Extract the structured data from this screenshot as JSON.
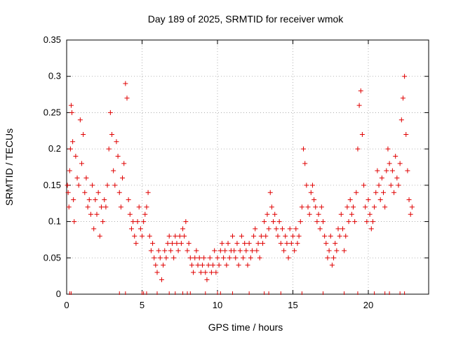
{
  "chart_data": {
    "type": "scatter",
    "title": "Day 189 of 2025, SRMTID for receiver wmok",
    "xlabel": "GPS time / hours",
    "ylabel": "SRMTID / TECUs",
    "xlim": [
      0,
      24
    ],
    "ylim": [
      0,
      0.35
    ],
    "grid": true,
    "marker": "+",
    "color": "#e00000",
    "xticks": [
      0,
      5,
      10,
      15,
      20
    ],
    "xtick_labels": [
      "0",
      "5",
      "10",
      "15",
      "20"
    ],
    "yticks": [
      0,
      0.05,
      0.1,
      0.15,
      0.2,
      0.25,
      0.3,
      0.35
    ],
    "ytick_labels": [
      "0",
      "0.05",
      "0.1",
      "0.15",
      "0.2",
      "0.25",
      "0.3",
      "0.35"
    ],
    "series": [
      {
        "name": "SRMTID",
        "points": [
          [
            0.05,
            0.15
          ],
          [
            0.1,
            0.14
          ],
          [
            0.15,
            0.12
          ],
          [
            0.2,
            0.17
          ],
          [
            0.25,
            0.2
          ],
          [
            0.3,
            0.26
          ],
          [
            0.35,
            0.25
          ],
          [
            0.4,
            0.21
          ],
          [
            0.45,
            0.13
          ],
          [
            0.5,
            0.1
          ],
          [
            0.6,
            0.19
          ],
          [
            0.7,
            0.16
          ],
          [
            0.8,
            0.15
          ],
          [
            0.9,
            0.24
          ],
          [
            1.0,
            0.18
          ],
          [
            1.1,
            0.22
          ],
          [
            1.2,
            0.14
          ],
          [
            1.3,
            0.16
          ],
          [
            1.4,
            0.12
          ],
          [
            1.5,
            0.13
          ],
          [
            1.6,
            0.11
          ],
          [
            1.7,
            0.15
          ],
          [
            1.8,
            0.09
          ],
          [
            1.9,
            0.13
          ],
          [
            2.0,
            0.11
          ],
          [
            2.1,
            0.14
          ],
          [
            2.2,
            0.08
          ],
          [
            2.3,
            0.12
          ],
          [
            2.4,
            0.1
          ],
          [
            2.5,
            0.13
          ],
          [
            2.6,
            0.12
          ],
          [
            2.7,
            0.15
          ],
          [
            2.8,
            0.2
          ],
          [
            2.9,
            0.25
          ],
          [
            3.0,
            0.22
          ],
          [
            3.1,
            0.17
          ],
          [
            3.2,
            0.15
          ],
          [
            3.3,
            0.21
          ],
          [
            3.4,
            0.19
          ],
          [
            3.5,
            0.14
          ],
          [
            3.6,
            0.12
          ],
          [
            3.7,
            0.16
          ],
          [
            3.8,
            0.18
          ],
          [
            3.9,
            0.29
          ],
          [
            4.0,
            0.27
          ],
          [
            4.1,
            0.13
          ],
          [
            4.2,
            0.11
          ],
          [
            4.3,
            0.09
          ],
          [
            4.4,
            0.1
          ],
          [
            4.5,
            0.08
          ],
          [
            4.6,
            0.07
          ],
          [
            4.7,
            0.1
          ],
          [
            4.8,
            0.12
          ],
          [
            4.9,
            0.09
          ],
          [
            5.0,
            0.08
          ],
          [
            5.1,
            0.1
          ],
          [
            5.2,
            0.11
          ],
          [
            5.3,
            0.12
          ],
          [
            5.4,
            0.14
          ],
          [
            5.5,
            0.08
          ],
          [
            5.6,
            0.06
          ],
          [
            5.7,
            0.07
          ],
          [
            5.8,
            0.05
          ],
          [
            5.9,
            0.04
          ],
          [
            6.0,
            0.03
          ],
          [
            6.1,
            0.06
          ],
          [
            6.2,
            0.05
          ],
          [
            6.3,
            0.02
          ],
          [
            6.4,
            0.04
          ],
          [
            6.5,
            0.06
          ],
          [
            6.6,
            0.05
          ],
          [
            6.7,
            0.07
          ],
          [
            6.8,
            0.08
          ],
          [
            6.9,
            0.06
          ],
          [
            7.0,
            0.07
          ],
          [
            7.1,
            0.05
          ],
          [
            7.2,
            0.08
          ],
          [
            7.3,
            0.07
          ],
          [
            7.4,
            0.06
          ],
          [
            7.5,
            0.08
          ],
          [
            7.6,
            0.07
          ],
          [
            7.7,
            0.09
          ],
          [
            7.8,
            0.08
          ],
          [
            7.9,
            0.1
          ],
          [
            8.0,
            0.06
          ],
          [
            8.1,
            0.07
          ],
          [
            8.2,
            0.05
          ],
          [
            8.3,
            0.04
          ],
          [
            8.4,
            0.03
          ],
          [
            8.5,
            0.05
          ],
          [
            8.6,
            0.06
          ],
          [
            8.7,
            0.04
          ],
          [
            8.8,
            0.05
          ],
          [
            8.9,
            0.03
          ],
          [
            9.0,
            0.04
          ],
          [
            9.1,
            0.05
          ],
          [
            9.2,
            0.03
          ],
          [
            9.3,
            0.02
          ],
          [
            9.4,
            0.04
          ],
          [
            9.5,
            0.05
          ],
          [
            9.6,
            0.03
          ],
          [
            9.7,
            0.04
          ],
          [
            9.8,
            0.06
          ],
          [
            9.9,
            0.03
          ],
          [
            10.0,
            0.05
          ],
          [
            10.1,
            0.04
          ],
          [
            10.2,
            0.06
          ],
          [
            10.3,
            0.07
          ],
          [
            10.4,
            0.05
          ],
          [
            10.5,
            0.06
          ],
          [
            10.6,
            0.04
          ],
          [
            10.7,
            0.07
          ],
          [
            10.8,
            0.05
          ],
          [
            10.9,
            0.06
          ],
          [
            11.0,
            0.08
          ],
          [
            11.1,
            0.06
          ],
          [
            11.2,
            0.05
          ],
          [
            11.3,
            0.07
          ],
          [
            11.4,
            0.04
          ],
          [
            11.5,
            0.06
          ],
          [
            11.6,
            0.08
          ],
          [
            11.7,
            0.05
          ],
          [
            11.8,
            0.07
          ],
          [
            11.9,
            0.06
          ],
          [
            12.0,
            0.04
          ],
          [
            12.1,
            0.07
          ],
          [
            12.2,
            0.05
          ],
          [
            12.3,
            0.06
          ],
          [
            12.4,
            0.08
          ],
          [
            12.5,
            0.09
          ],
          [
            12.6,
            0.06
          ],
          [
            12.7,
            0.07
          ],
          [
            12.8,
            0.05
          ],
          [
            12.9,
            0.08
          ],
          [
            13.0,
            0.07
          ],
          [
            13.1,
            0.1
          ],
          [
            13.2,
            0.08
          ],
          [
            13.3,
            0.11
          ],
          [
            13.4,
            0.09
          ],
          [
            13.5,
            0.14
          ],
          [
            13.6,
            0.12
          ],
          [
            13.7,
            0.1
          ],
          [
            13.8,
            0.11
          ],
          [
            13.9,
            0.09
          ],
          [
            14.0,
            0.08
          ],
          [
            14.1,
            0.1
          ],
          [
            14.2,
            0.07
          ],
          [
            14.3,
            0.09
          ],
          [
            14.4,
            0.06
          ],
          [
            14.5,
            0.08
          ],
          [
            14.6,
            0.07
          ],
          [
            14.7,
            0.05
          ],
          [
            14.8,
            0.09
          ],
          [
            14.9,
            0.07
          ],
          [
            15.0,
            0.08
          ],
          [
            15.1,
            0.06
          ],
          [
            15.2,
            0.09
          ],
          [
            15.3,
            0.07
          ],
          [
            15.4,
            0.08
          ],
          [
            15.5,
            0.1
          ],
          [
            15.6,
            0.12
          ],
          [
            15.7,
            0.2
          ],
          [
            15.8,
            0.18
          ],
          [
            15.9,
            0.15
          ],
          [
            16.0,
            0.12
          ],
          [
            16.1,
            0.11
          ],
          [
            16.2,
            0.14
          ],
          [
            16.3,
            0.15
          ],
          [
            16.4,
            0.13
          ],
          [
            16.5,
            0.12
          ],
          [
            16.6,
            0.1
          ],
          [
            16.7,
            0.11
          ],
          [
            16.8,
            0.09
          ],
          [
            16.9,
            0.12
          ],
          [
            17.0,
            0.1
          ],
          [
            17.1,
            0.08
          ],
          [
            17.2,
            0.07
          ],
          [
            17.3,
            0.05
          ],
          [
            17.4,
            0.06
          ],
          [
            17.5,
            0.08
          ],
          [
            17.6,
            0.04
          ],
          [
            17.7,
            0.05
          ],
          [
            17.8,
            0.07
          ],
          [
            17.9,
            0.06
          ],
          [
            18.0,
            0.09
          ],
          [
            18.1,
            0.08
          ],
          [
            18.2,
            0.11
          ],
          [
            18.3,
            0.09
          ],
          [
            18.4,
            0.06
          ],
          [
            18.5,
            0.08
          ],
          [
            18.6,
            0.12
          ],
          [
            18.7,
            0.1
          ],
          [
            18.8,
            0.13
          ],
          [
            18.9,
            0.11
          ],
          [
            19.0,
            0.12
          ],
          [
            19.1,
            0.1
          ],
          [
            19.2,
            0.14
          ],
          [
            19.3,
            0.2
          ],
          [
            19.4,
            0.26
          ],
          [
            19.5,
            0.28
          ],
          [
            19.6,
            0.22
          ],
          [
            19.7,
            0.15
          ],
          [
            19.8,
            0.12
          ],
          [
            19.9,
            0.1
          ],
          [
            20.0,
            0.13
          ],
          [
            20.1,
            0.11
          ],
          [
            20.2,
            0.09
          ],
          [
            20.3,
            0.1
          ],
          [
            20.4,
            0.12
          ],
          [
            20.5,
            0.14
          ],
          [
            20.6,
            0.17
          ],
          [
            20.7,
            0.15
          ],
          [
            20.8,
            0.13
          ],
          [
            20.9,
            0.16
          ],
          [
            21.0,
            0.14
          ],
          [
            21.1,
            0.12
          ],
          [
            21.2,
            0.17
          ],
          [
            21.3,
            0.2
          ],
          [
            21.4,
            0.18
          ],
          [
            21.5,
            0.15
          ],
          [
            21.6,
            0.17
          ],
          [
            21.7,
            0.14
          ],
          [
            21.8,
            0.19
          ],
          [
            21.9,
            0.16
          ],
          [
            22.0,
            0.15
          ],
          [
            22.1,
            0.18
          ],
          [
            22.2,
            0.24
          ],
          [
            22.3,
            0.27
          ],
          [
            22.4,
            0.3
          ],
          [
            22.5,
            0.22
          ],
          [
            22.6,
            0.17
          ],
          [
            22.7,
            0.13
          ],
          [
            22.8,
            0.11
          ],
          [
            22.9,
            0.12
          ]
        ]
      }
    ],
    "zero_points_x": [
      0.2,
      0.3,
      3.5,
      3.9,
      5.0,
      5.1,
      5.3,
      6.0,
      6.8,
      7.2,
      7.7,
      8.0,
      8.2,
      9.2,
      10.0,
      10.2,
      11.0,
      12.1,
      13.1,
      13.4,
      14.2,
      15.6,
      17.0,
      18.4,
      19.3,
      20.4,
      21.1,
      21.4,
      22.1,
      22.4
    ]
  }
}
